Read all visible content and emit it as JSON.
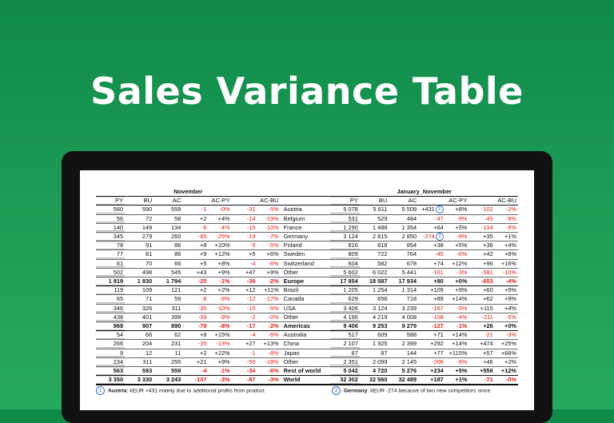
{
  "headline": "Sales Variance Table",
  "tables": {
    "november": {
      "period": "November",
      "headers": [
        "PY",
        "BU",
        "AC",
        "AC-PY",
        "AC-BU"
      ],
      "rows": [
        {
          "py": "560",
          "bu": "590",
          "ac": "559",
          "d1": "-1",
          "p1": "-0%",
          "d2": "-31",
          "p2": "-5%",
          "label": "Austria"
        },
        {
          "py": "56",
          "bu": "72",
          "ac": "58",
          "d1": "+2",
          "p1": "+4%",
          "d2": "-14",
          "p2": "-19%",
          "label": "Belgium"
        },
        {
          "py": "140",
          "bu": "149",
          "ac": "134",
          "d1": "-6",
          "p1": "-4%",
          "d2": "-15",
          "p2": "-10%",
          "label": "France"
        },
        {
          "py": "345",
          "bu": "279",
          "ac": "260",
          "d1": "-85",
          "p1": "-25%",
          "d2": "-19",
          "p2": "-7%",
          "label": "Germany"
        },
        {
          "py": "78",
          "bu": "91",
          "ac": "86",
          "d1": "+8",
          "p1": "+10%",
          "d2": "-5",
          "p2": "-5%",
          "label": "Poland"
        },
        {
          "py": "77",
          "bu": "81",
          "ac": "86",
          "d1": "+9",
          "p1": "+12%",
          "d2": "+5",
          "p2": "+6%",
          "label": "Sweden"
        },
        {
          "py": "61",
          "bu": "70",
          "ac": "66",
          "d1": "+5",
          "p1": "+8%",
          "d2": "-4",
          "p2": "-6%",
          "label": "Switzerland"
        },
        {
          "py": "502",
          "bu": "498",
          "ac": "545",
          "d1": "+43",
          "p1": "+9%",
          "d2": "+47",
          "p2": "+9%",
          "label": "Other"
        },
        {
          "py": "1 819",
          "bu": "1 830",
          "ac": "1 794",
          "d1": "-25",
          "p1": "-1%",
          "d2": "-36",
          "p2": "-2%",
          "label": "Europe",
          "bold": true
        },
        {
          "py": "119",
          "bu": "109",
          "ac": "121",
          "d1": "+2",
          "p1": "+2%",
          "d2": "+12",
          "p2": "+11%",
          "label": "Brazil"
        },
        {
          "py": "65",
          "bu": "71",
          "ac": "59",
          "d1": "-6",
          "p1": "-9%",
          "d2": "-12",
          "p2": "-17%",
          "label": "Canada"
        },
        {
          "py": "346",
          "bu": "326",
          "ac": "311",
          "d1": "-35",
          "p1": "-10%",
          "d2": "-15",
          "p2": "-5%",
          "label": "USA"
        },
        {
          "py": "438",
          "bu": "401",
          "ac": "399",
          "d1": "-39",
          "p1": "-9%",
          "d2": "-2",
          "p2": "-0%",
          "label": "Other"
        },
        {
          "py": "968",
          "bu": "907",
          "ac": "890",
          "d1": "-78",
          "p1": "-8%",
          "d2": "-17",
          "p2": "-2%",
          "label": "Americas",
          "bold": true
        },
        {
          "py": "54",
          "bu": "66",
          "ac": "62",
          "d1": "+8",
          "p1": "+15%",
          "d2": "-4",
          "p2": "-6%",
          "label": "Australia"
        },
        {
          "py": "266",
          "bu": "204",
          "ac": "231",
          "d1": "-35",
          "p1": "-13%",
          "d2": "+27",
          "p2": "+13%",
          "label": "China"
        },
        {
          "py": "9",
          "bu": "12",
          "ac": "11",
          "d1": "+2",
          "p1": "+22%",
          "d2": "-1",
          "p2": "-8%",
          "label": "Japan"
        },
        {
          "py": "234",
          "bu": "311",
          "ac": "255",
          "d1": "+21",
          "p1": "+9%",
          "d2": "-56",
          "p2": "-18%",
          "label": "Other"
        },
        {
          "py": "563",
          "bu": "593",
          "ac": "559",
          "d1": "-4",
          "p1": "-1%",
          "d2": "-34",
          "p2": "-6%",
          "label": "Rest of world",
          "bold": true
        },
        {
          "py": "3 350",
          "bu": "3 330",
          "ac": "3 243",
          "d1": "-107",
          "p1": "-3%",
          "d2": "-87",
          "p2": "-3%",
          "label": "World",
          "bold": true,
          "total": true
        }
      ]
    },
    "ytd": {
      "period": "January_November",
      "headers": [
        "PY",
        "BU",
        "AC",
        "AC-PY",
        "AC-BU"
      ],
      "rows": [
        {
          "py": "5 078",
          "bu": "5 611",
          "ac": "5 509",
          "d1": "+431",
          "m": "1",
          "p1": "+8%",
          "d2": "-102",
          "p2": "-2%"
        },
        {
          "py": "531",
          "bu": "529",
          "ac": "484",
          "d1": "-47",
          "p1": "-9%",
          "d2": "-45",
          "p2": "-9%"
        },
        {
          "py": "1 290",
          "bu": "1 488",
          "ac": "1 354",
          "d1": "+64",
          "p1": "+5%",
          "d2": "-134",
          "p2": "-9%"
        },
        {
          "py": "3 124",
          "bu": "2 815",
          "ac": "2 850",
          "d1": "-274",
          "m": "2",
          "p1": "-9%",
          "d2": "+35",
          "p2": "+1%"
        },
        {
          "py": "816",
          "bu": "818",
          "ac": "854",
          "d1": "+38",
          "p1": "+5%",
          "d2": "+36",
          "p2": "+4%"
        },
        {
          "py": "809",
          "bu": "722",
          "ac": "764",
          "d1": "-45",
          "p1": "-6%",
          "d2": "+42",
          "p2": "+6%"
        },
        {
          "py": "604",
          "bu": "582",
          "ac": "678",
          "d1": "+74",
          "p1": "+12%",
          "d2": "+96",
          "p2": "+16%"
        },
        {
          "py": "5 602",
          "bu": "6 022",
          "ac": "5 441",
          "d1": "-161",
          "p1": "-3%",
          "d2": "-581",
          "p2": "-10%"
        },
        {
          "py": "17 854",
          "bu": "18 587",
          "ac": "17 934",
          "d1": "+80",
          "p1": "+0%",
          "d2": "-653",
          "p2": "-4%",
          "bold": true
        },
        {
          "py": "1 205",
          "bu": "1 254",
          "ac": "1 314",
          "d1": "+109",
          "p1": "+9%",
          "d2": "+60",
          "p2": "+5%"
        },
        {
          "py": "629",
          "bu": "656",
          "ac": "718",
          "d1": "+89",
          "p1": "+14%",
          "d2": "+62",
          "p2": "+9%"
        },
        {
          "py": "3 406",
          "bu": "3 124",
          "ac": "3 239",
          "d1": "-167",
          "p1": "-5%",
          "d2": "+115",
          "p2": "+4%"
        },
        {
          "py": "4 166",
          "bu": "4 219",
          "ac": "4 008",
          "d1": "-158",
          "p1": "-4%",
          "d2": "-211",
          "p2": "-5%"
        },
        {
          "py": "9 406",
          "bu": "9 253",
          "ac": "9 279",
          "d1": "-127",
          "p1": "-1%",
          "d2": "+26",
          "p2": "+0%",
          "bold": true
        },
        {
          "py": "517",
          "bu": "609",
          "ac": "588",
          "d1": "+71",
          "p1": "+14%",
          "d2": "-21",
          "p2": "-3%"
        },
        {
          "py": "2 107",
          "bu": "1 925",
          "ac": "2 399",
          "d1": "+292",
          "p1": "+14%",
          "d2": "+474",
          "p2": "+25%"
        },
        {
          "py": "67",
          "bu": "87",
          "ac": "144",
          "d1": "+77",
          "p1": "+115%",
          "d2": "+57",
          "p2": "+66%"
        },
        {
          "py": "2 351",
          "bu": "2 099",
          "ac": "2 145",
          "d1": "-206",
          "p1": "-9%",
          "d2": "+46",
          "p2": "+2%"
        },
        {
          "py": "5 042",
          "bu": "4 720",
          "ac": "5 276",
          "d1": "+234",
          "p1": "+5%",
          "d2": "+556",
          "p2": "+12%",
          "bold": true
        },
        {
          "py": "32 302",
          "bu": "32 560",
          "ac": "32 489",
          "d1": "+187",
          "p1": "+1%",
          "d2": "-71",
          "p2": "-0%",
          "bold": true,
          "total": true
        }
      ]
    }
  },
  "notes": [
    {
      "marker": "1",
      "bold": "Austria",
      "text": ": kEUR +431 mainly due to additional profits from product"
    },
    {
      "marker": "2",
      "bold": "Germany",
      "text": ": kEUR -274 because of two new competitors since"
    }
  ],
  "colors": {
    "background": "#1d9a55",
    "negative": "#e0201a",
    "marker": "#2f6fd0",
    "device": "#111111"
  }
}
